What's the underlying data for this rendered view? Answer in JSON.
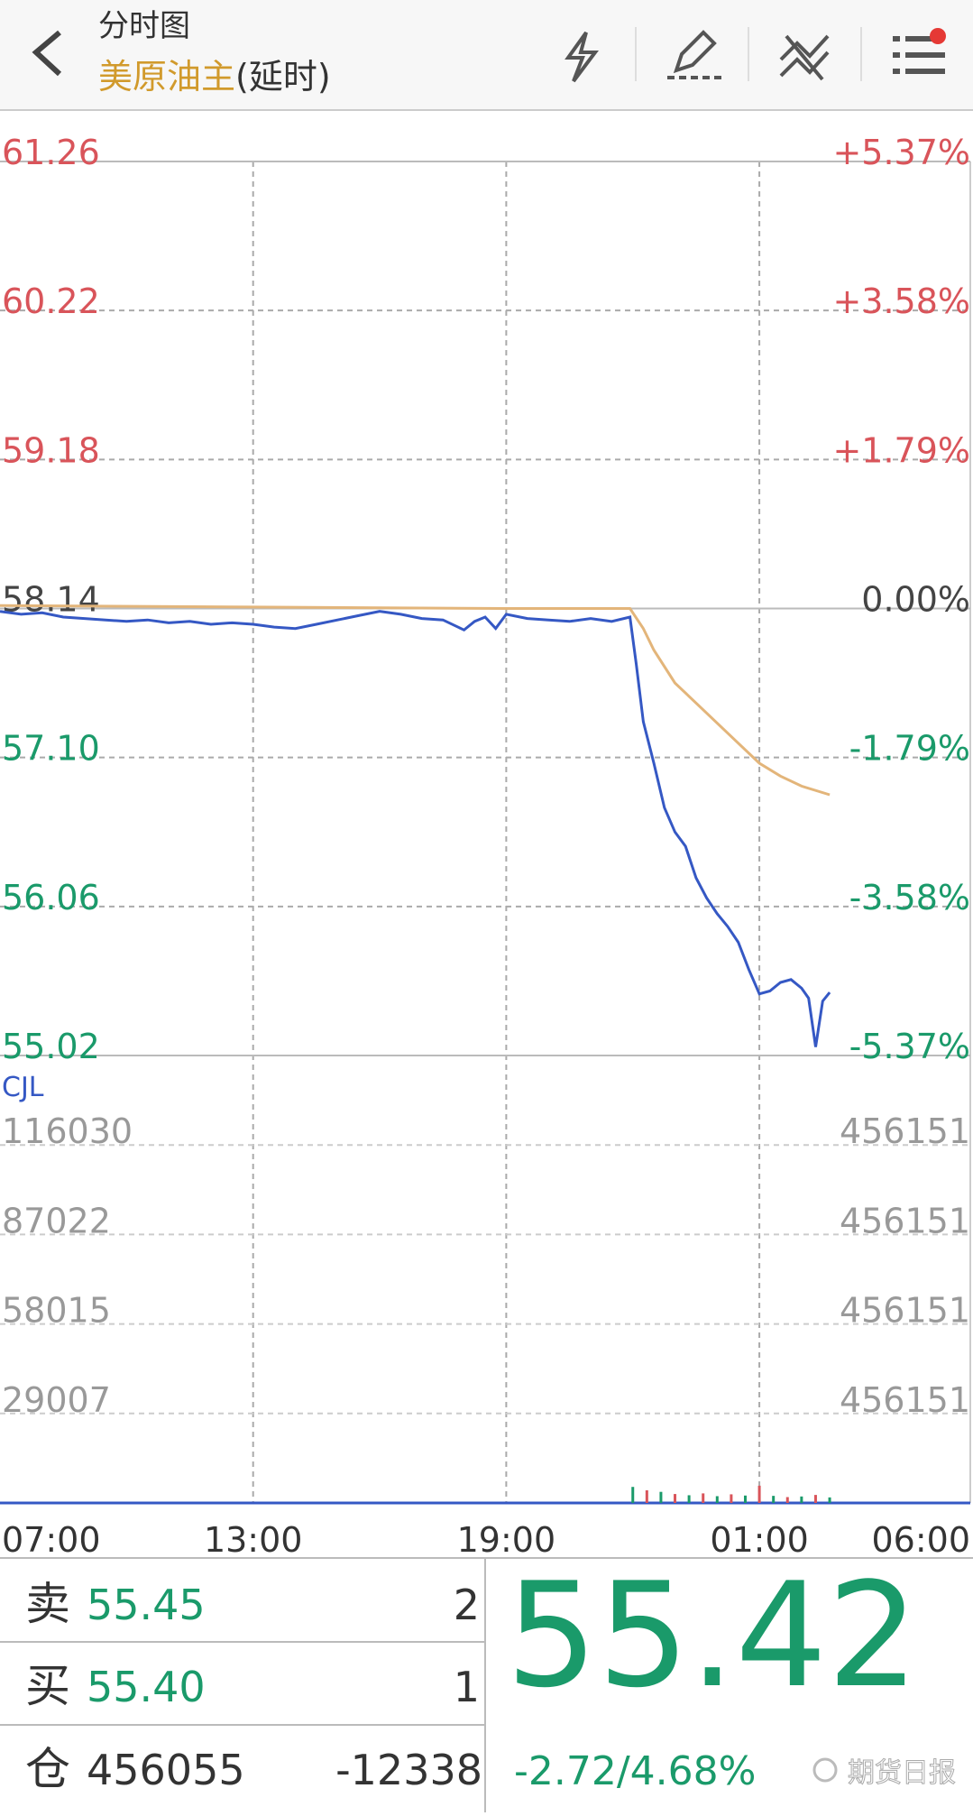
{
  "header": {
    "title": "分时图",
    "symbol": "美原油主",
    "note": "(延时)"
  },
  "chart_data": [
    {
      "type": "line",
      "xticks": [
        "07:00",
        "13:00",
        "19:00",
        "01:00",
        "06:00"
      ],
      "ylim": [
        55.02,
        61.26
      ],
      "yticks": [
        61.26,
        60.22,
        59.18,
        58.14,
        {
          "value": 57.1,
          "label": "57.10"
        },
        56.06,
        55.02
      ],
      "y2lim": [
        -5.37,
        5.37
      ],
      "y2ticks": [
        {
          "value": 5.37,
          "label": "+5.37%"
        },
        {
          "value": 3.58,
          "label": "+3.58%"
        },
        {
          "value": 1.79,
          "label": "+1.79%"
        },
        {
          "value": 0,
          "label": "0.00%"
        },
        {
          "value": -1.79,
          "label": "-1.79%"
        },
        {
          "value": -3.58,
          "label": "-3.58%"
        },
        {
          "value": -5.37,
          "label": "-5.37%"
        }
      ],
      "grid": true,
      "series": [
        {
          "color": "#3558c4",
          "x": [
            "07:00",
            "07:30",
            "08:00",
            "08:30",
            "09:00",
            "09:30",
            "10:00",
            "10:30",
            "11:00",
            "11:30",
            "12:00",
            "12:30",
            "13:00",
            "13:30",
            "14:00",
            "14:30",
            "15:00",
            "15:30",
            "16:00",
            "16:30",
            "17:00",
            "17:30",
            "18:00",
            "18:15",
            "18:30",
            "18:45",
            "19:00",
            "19:30",
            "20:00",
            "20:30",
            "21:00",
            "21:30",
            "21:56",
            "22:05",
            "22:15",
            "22:30",
            "22:45",
            "23:00",
            "23:15",
            "23:30",
            "23:45",
            "00:00",
            "00:15",
            "00:30",
            "00:45",
            "01:00",
            "01:15",
            "01:30",
            "01:45",
            "02:00",
            "02:10",
            "02:20",
            "02:30",
            "02:40"
          ],
          "values": [
            58.12,
            58.1,
            58.11,
            58.08,
            58.07,
            58.06,
            58.05,
            58.06,
            58.04,
            58.05,
            58.03,
            58.04,
            58.03,
            58.01,
            58.0,
            58.03,
            58.06,
            58.09,
            58.12,
            58.1,
            58.07,
            58.06,
            57.99,
            58.05,
            58.08,
            58.0,
            58.1,
            58.07,
            58.06,
            58.05,
            58.07,
            58.05,
            58.08,
            57.75,
            57.35,
            57.06,
            56.75,
            56.58,
            56.48,
            56.26,
            56.12,
            56.01,
            55.92,
            55.81,
            55.62,
            55.45,
            55.47,
            55.53,
            55.55,
            55.49,
            55.42,
            55.08,
            55.4,
            55.46
          ]
        },
        {
          "color": "#e3b57a",
          "x": [
            "07:00",
            "13:00",
            "19:00",
            "21:56",
            "22:15",
            "22:30",
            "23:00",
            "23:30",
            "00:00",
            "00:30",
            "01:00",
            "01:30",
            "02:00",
            "02:40"
          ],
          "values": [
            58.16,
            58.15,
            58.14,
            58.14,
            58.0,
            57.85,
            57.62,
            57.48,
            57.34,
            57.2,
            57.06,
            56.97,
            56.9,
            56.84
          ]
        }
      ]
    },
    {
      "type": "bar",
      "title": "CJL",
      "ylim": [
        0,
        145037
      ],
      "yticks": [
        116030,
        87022,
        58015,
        29007
      ],
      "right_labels": [
        "456151",
        "456151",
        "456151",
        "456151"
      ],
      "series": [
        {
          "color": "#3558c4",
          "x": [
            "22:00",
            "22:20",
            "22:40",
            "23:00",
            "23:20",
            "23:40",
            "00:00",
            "00:20",
            "00:40",
            "01:00",
            "01:20",
            "01:40",
            "02:00",
            "02:20",
            "02:40"
          ],
          "values": [
            5200,
            4100,
            3600,
            2900,
            2500,
            3100,
            2200,
            2800,
            2400,
            5600,
            2300,
            1900,
            2100,
            2600,
            1800
          ]
        }
      ]
    }
  ],
  "quote": {
    "sell_label": "卖",
    "sell_price": "55.45",
    "sell_qty": "2",
    "buy_label": "买",
    "buy_price": "55.40",
    "buy_qty": "1",
    "oi_label": "仓",
    "oi": "456055",
    "oi_change": "-12338",
    "last": "55.42",
    "change": "-2.72/4.68%"
  },
  "watermark": "期货日报"
}
